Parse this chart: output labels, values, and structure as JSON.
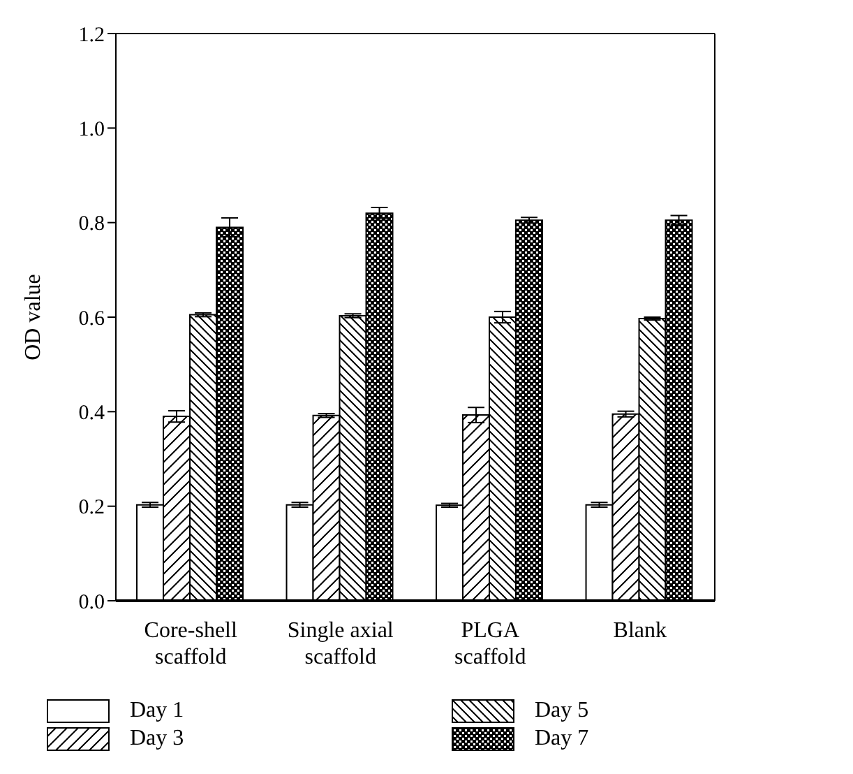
{
  "chart_data": {
    "type": "bar",
    "ylabel": "OD value",
    "categories": [
      "Core-shell scaffold",
      "Single axial scaffold",
      "PLGA scaffold",
      "Blank"
    ],
    "series": [
      {
        "name": "Day 1",
        "color": "#ffffff",
        "values": [
          0.203,
          0.203,
          0.202,
          0.203
        ],
        "errors": [
          0.005,
          0.005,
          0.004,
          0.005
        ]
      },
      {
        "name": "Day 3",
        "color": "#000000",
        "values": [
          0.39,
          0.392,
          0.393,
          0.395
        ],
        "errors": [
          0.012,
          0.004,
          0.016,
          0.006
        ]
      },
      {
        "name": "Day 5",
        "color": "#000000",
        "values": [
          0.605,
          0.603,
          0.6,
          0.597
        ],
        "errors": [
          0.004,
          0.004,
          0.012,
          0.003
        ]
      },
      {
        "name": "Day 7",
        "color": "#000000",
        "values": [
          0.79,
          0.82,
          0.805,
          0.805
        ],
        "errors": [
          0.02,
          0.012,
          0.006,
          0.01
        ]
      }
    ],
    "ylim": [
      0,
      1.2
    ],
    "yticks": [
      {
        "value": 0,
        "label": "0.0"
      },
      {
        "value": 0.2,
        "label": "0.2"
      },
      {
        "value": 0.4,
        "label": "0.4"
      },
      {
        "value": 0.6,
        "label": "0.6"
      },
      {
        "value": 0.8,
        "label": "0.8"
      },
      {
        "value": 1,
        "label": "1.0"
      },
      {
        "value": 1.2,
        "label": "1.2"
      }
    ],
    "grid": false,
    "legend": "bottom"
  }
}
